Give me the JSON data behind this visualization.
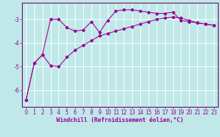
{
  "title": "",
  "xlabel": "Windchill (Refroidissement éolien,°C)",
  "bg_color": "#c0e8e8",
  "line_color": "#990099",
  "grid_color": "#ffffff",
  "spine_color": "#660066",
  "xlim": [
    -0.5,
    23.5
  ],
  "ylim": [
    -6.7,
    -2.3
  ],
  "yticks": [
    -6,
    -5,
    -4,
    -3
  ],
  "xticks": [
    0,
    1,
    2,
    3,
    4,
    5,
    6,
    7,
    8,
    9,
    10,
    11,
    12,
    13,
    14,
    15,
    16,
    17,
    18,
    19,
    20,
    21,
    22,
    23
  ],
  "curve1_x": [
    0,
    1,
    2,
    3,
    4,
    5,
    6,
    7,
    8,
    9,
    10,
    11,
    12,
    13,
    14,
    15,
    16,
    17,
    18,
    19,
    20,
    21,
    22,
    23
  ],
  "curve1_y": [
    -6.4,
    -4.85,
    -4.5,
    -3.0,
    -3.0,
    -3.35,
    -3.5,
    -3.45,
    -3.1,
    -3.55,
    -3.05,
    -2.65,
    -2.6,
    -2.6,
    -2.65,
    -2.7,
    -2.75,
    -2.75,
    -2.7,
    -3.05,
    -3.1,
    -3.15,
    -3.2,
    -3.25
  ],
  "curve2_x": [
    0,
    1,
    2,
    3,
    4,
    5,
    6,
    7,
    8,
    9,
    10,
    11,
    12,
    13,
    14,
    15,
    16,
    17,
    18,
    19,
    20,
    21,
    22,
    23
  ],
  "curve2_y": [
    -6.4,
    -4.85,
    -4.5,
    -4.95,
    -5.0,
    -4.6,
    -4.3,
    -4.1,
    -3.9,
    -3.7,
    -3.6,
    -3.5,
    -3.4,
    -3.3,
    -3.2,
    -3.1,
    -3.0,
    -2.95,
    -2.9,
    -2.95,
    -3.05,
    -3.15,
    -3.2,
    -3.25
  ],
  "tick_fontsize": 5.5,
  "label_fontsize": 6.0,
  "marker_size": 2.0,
  "line_width": 0.8
}
